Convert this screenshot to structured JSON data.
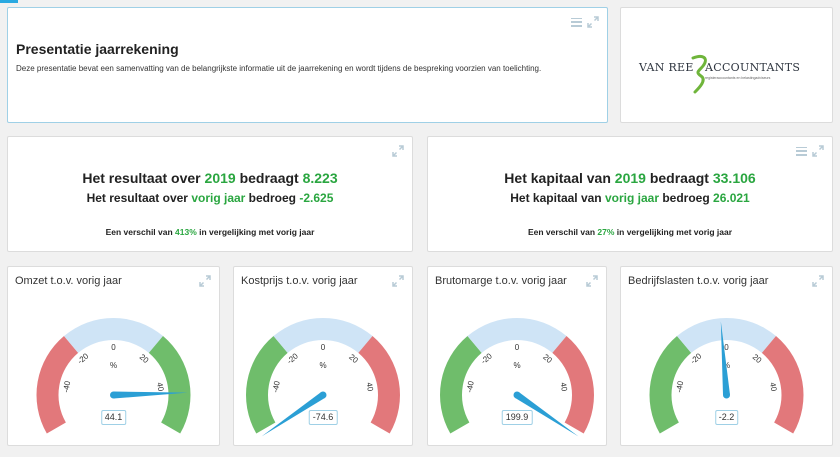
{
  "intro": {
    "title": "Presentatie jaarrekening",
    "description": "Deze presentatie bevat een samenvatting van de belangrijkste informatie uit de jaarrekening en wordt tijdens de bespreking voorzien van toelichting."
  },
  "logo": {
    "part1": "VAN REE",
    "part2": "ACCOUNTANTS",
    "tagline": "registeraccountants en belastingadviseurs",
    "color_green": "#6fb53b"
  },
  "resultaat": {
    "l1_pre": "Het resultaat over ",
    "l1_year": "2019",
    "l1_mid": " bedraagt ",
    "l1_value": "8.223",
    "l2_pre": "Het resultaat over ",
    "l2_period": "vorig jaar",
    "l2_mid": " bedroeg ",
    "l2_value": "-2.625",
    "l3_pre": "Een verschil van ",
    "l3_pct": "413%",
    "l3_post": " in vergelijking met vorig jaar"
  },
  "kapitaal": {
    "l1_pre": "Het kapitaal van ",
    "l1_year": "2019",
    "l1_mid": " bedraagt ",
    "l1_value": "33.106",
    "l2_pre": "Het kapitaal van ",
    "l2_period": "vorig jaar",
    "l2_mid": " bedroeg ",
    "l2_value": "26.021",
    "l3_pre": "Een verschil van ",
    "l3_pct": "27%",
    "l3_post": " in vergelijking met vorig jaar"
  },
  "gauges": [
    {
      "title": "Omzet t.o.v. vorig jaar",
      "value": 44.1,
      "display": "44.1",
      "unit": "%",
      "ticks": [
        "-40",
        "-20",
        "0",
        "20",
        "40"
      ],
      "left": "red",
      "right": "green"
    },
    {
      "title": "Kostprijs t.o.v. vorig jaar",
      "value": -74.6,
      "display": "-74.6",
      "unit": "%",
      "ticks": [
        "-40",
        "-20",
        "0",
        "20",
        "40"
      ],
      "left": "green",
      "right": "red"
    },
    {
      "title": "Brutomarge t.o.v. vorig jaar",
      "value": 199.9,
      "display": "199.9",
      "unit": "%",
      "ticks": [
        "-40",
        "-20",
        "0",
        "20",
        "40"
      ],
      "left": "green",
      "right": "red"
    },
    {
      "title": "Bedrijfslasten t.o.v. vorig jaar",
      "value": -2.2,
      "display": "-2.2",
      "unit": "%",
      "ticks": [
        "-40",
        "-20",
        "0",
        "20",
        "40"
      ],
      "left": "green",
      "right": "red"
    }
  ],
  "colors": {
    "red": "#e2787b",
    "green": "#6fbd6b",
    "blue_band": "#cfe4f6",
    "needle": "#2b9fd5",
    "accent": "#2aa640"
  }
}
